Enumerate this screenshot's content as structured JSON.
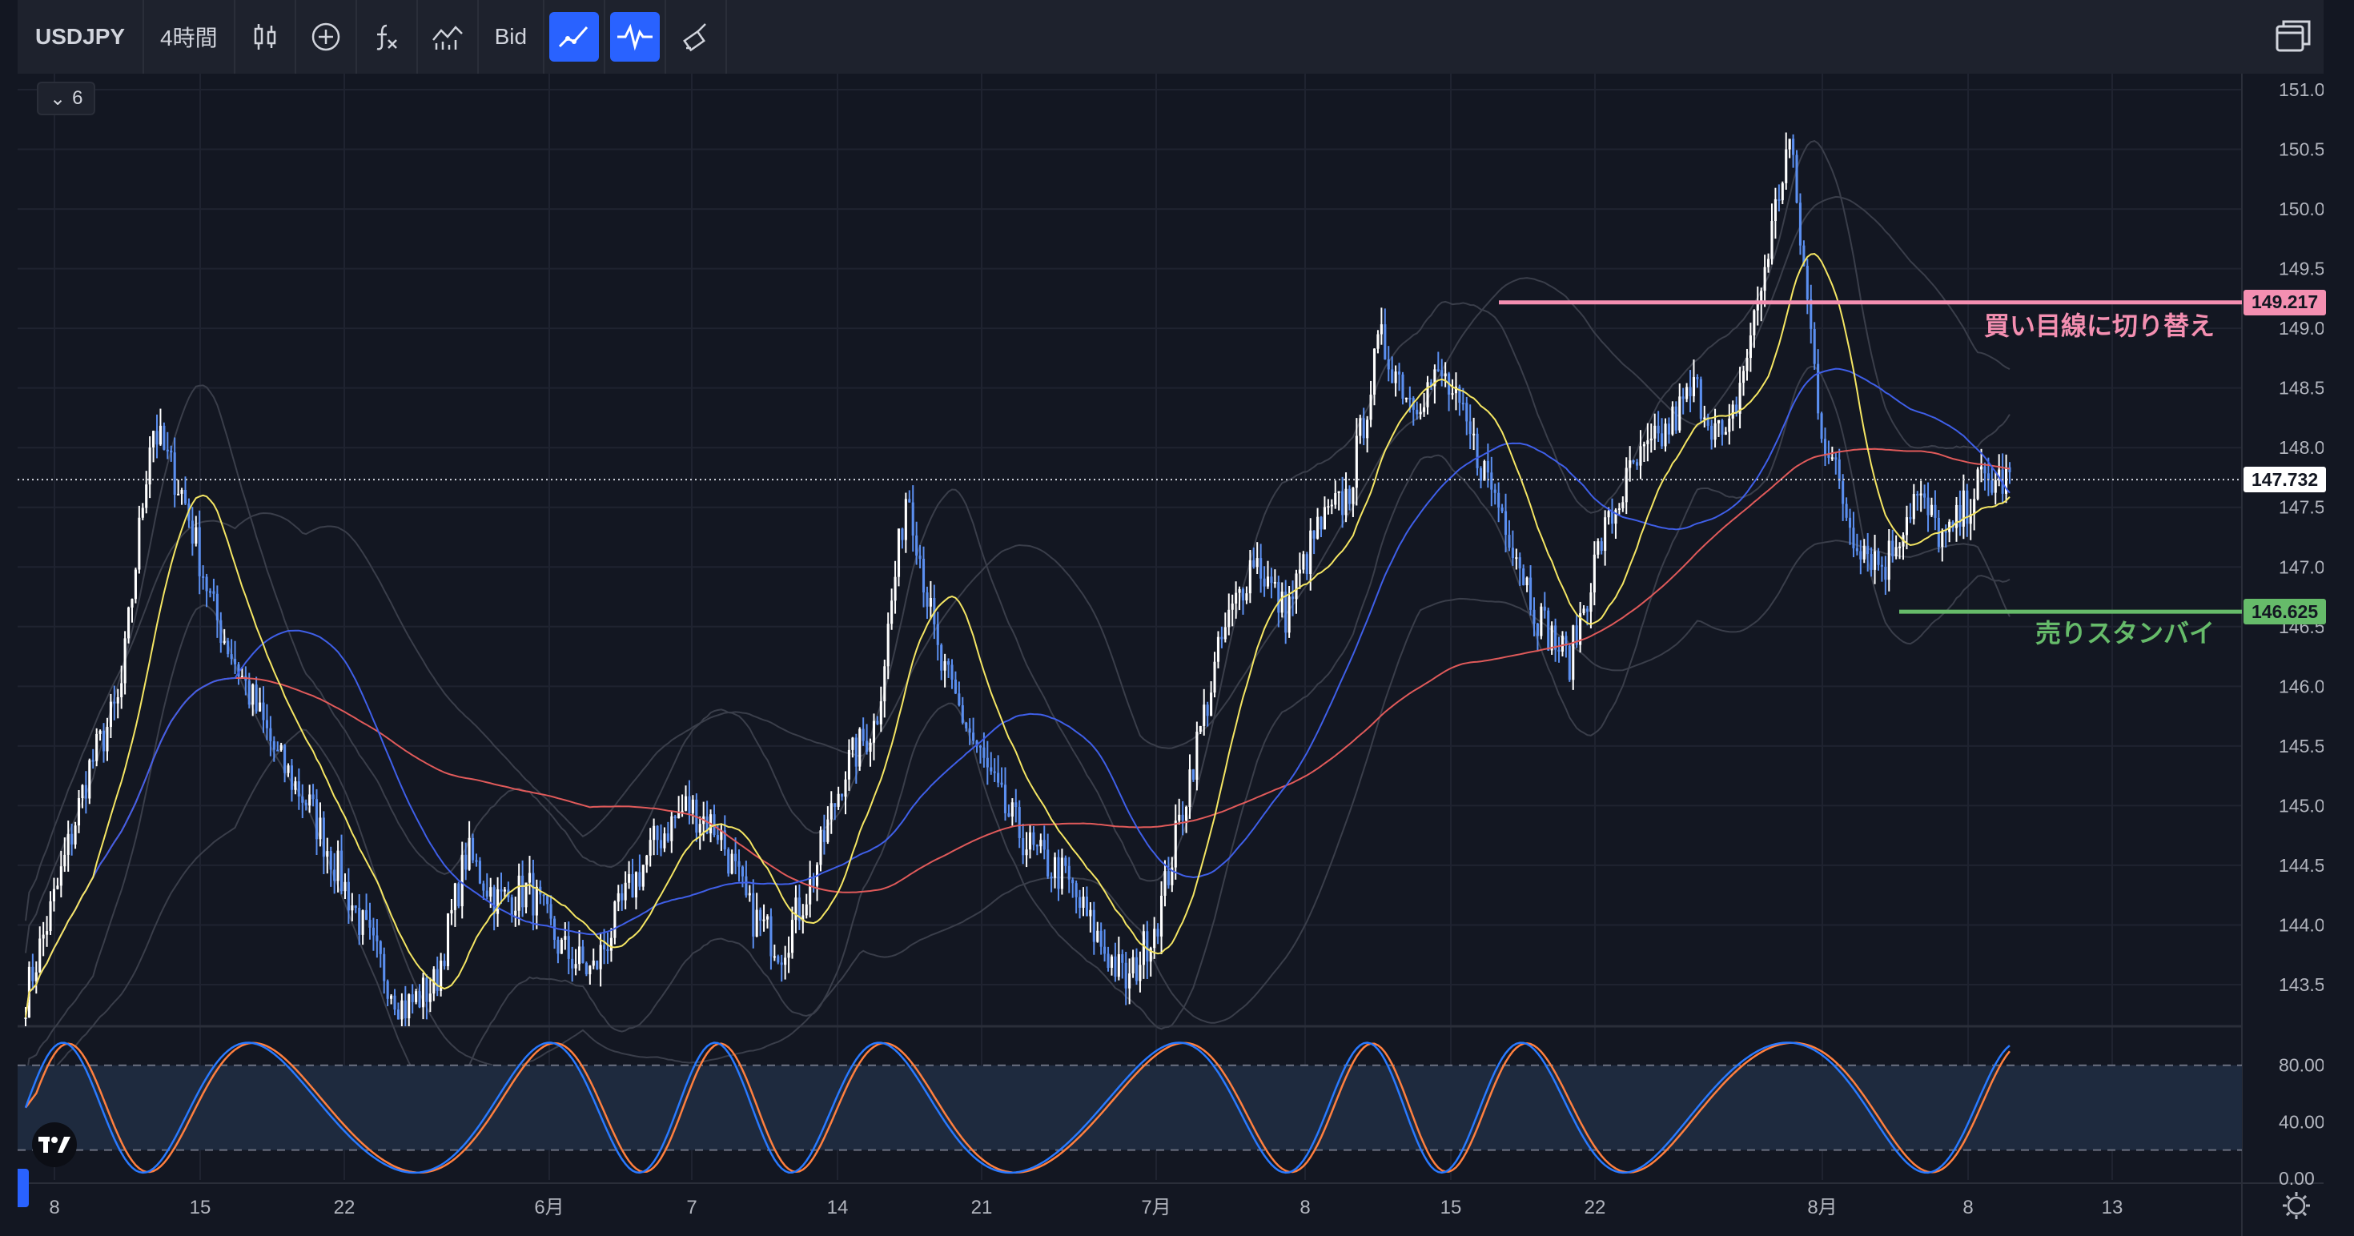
{
  "toolbar": {
    "symbol": "USDJPY",
    "interval": "4時間",
    "price_type": "Bid",
    "icons": [
      "candles-icon",
      "add-indicator-icon",
      "fx-indicators-icon",
      "compare-icon",
      "trend-line-icon",
      "oscillator-icon",
      "brush-icon",
      "layout-icon"
    ]
  },
  "legend": {
    "count": "6"
  },
  "price_axis": {
    "labels": [
      "151.000",
      "150.500",
      "150.000",
      "149.500",
      "149.000",
      "148.500",
      "148.000",
      "147.500",
      "147.000",
      "146.500",
      "146.000",
      "145.500",
      "145.000",
      "144.500",
      "144.000",
      "143.500"
    ],
    "values": [
      151.0,
      150.5,
      150.0,
      149.5,
      149.0,
      148.5,
      148.0,
      147.5,
      147.0,
      146.5,
      146.0,
      145.5,
      145.0,
      144.5,
      144.0,
      143.5
    ]
  },
  "current_price": {
    "label": "147.732",
    "value": 147.732
  },
  "horizontal_lines": [
    {
      "price_label": "149.217",
      "value": 149.217,
      "text": "買い目線に切り替え",
      "color": "#f48fb1"
    },
    {
      "price_label": "146.625",
      "value": 146.625,
      "text": "売りスタンバイ",
      "color": "#66bb6a"
    }
  ],
  "oscillator_axis": {
    "labels": [
      "80.00",
      "40.00",
      "0.00"
    ],
    "values": [
      80,
      40,
      0
    ]
  },
  "time_axis": [
    "8",
    "15",
    "22",
    "6月",
    "7",
    "14",
    "21",
    "7月",
    "8",
    "15",
    "22",
    "8月",
    "8",
    "13"
  ],
  "colors": {
    "background": "#131722",
    "candle": "#5b8ff0",
    "candle_light": "#ffffff",
    "ma_fast": "#f5e663",
    "ma_mid": "#3f5fe8",
    "ma_slow": "#e05a5a",
    "stoch_k": "#2979ff",
    "stoch_d": "#ff7f3f"
  },
  "chart_data": {
    "type": "candlestick",
    "symbol": "USDJPY",
    "interval": "4時間",
    "ylim": [
      143.2,
      151.2
    ],
    "xlabels": [
      "8",
      "15",
      "22",
      "6月",
      "7",
      "14",
      "21",
      "7月",
      "8",
      "15",
      "22",
      "8月",
      "8",
      "13"
    ],
    "closes": [
      143.4,
      144.3,
      145.3,
      145.9,
      148.2,
      147.6,
      146.6,
      146.0,
      145.4,
      145.0,
      144.4,
      143.8,
      143.3,
      143.5,
      144.6,
      144.2,
      144.3,
      143.8,
      143.6,
      144.2,
      144.7,
      145.0,
      144.8,
      144.1,
      143.8,
      144.4,
      145.3,
      145.7,
      147.7,
      146.2,
      145.6,
      145.0,
      144.6,
      144.4,
      143.9,
      143.5,
      144.1,
      145.3,
      146.4,
      147.1,
      146.6,
      147.3,
      147.6,
      148.9,
      148.4,
      148.6,
      148.0,
      147.4,
      146.6,
      146.2,
      147.2,
      147.8,
      148.1,
      148.5,
      148.0,
      149.2,
      150.6,
      148.2,
      147.3,
      147.0,
      147.6,
      147.2,
      147.7,
      147.73
    ],
    "stochastic_lines": [
      80,
      20
    ]
  }
}
